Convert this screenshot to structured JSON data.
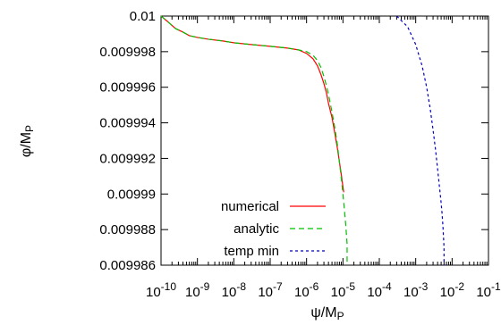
{
  "chart_data": {
    "type": "line",
    "x_scale": "log",
    "xlim": [
      1e-10,
      0.1
    ],
    "ylim": [
      0.009986,
      0.01
    ],
    "grid": false,
    "legend_position": "bottom-left",
    "xlabel": "ψ/M",
    "xlabel_sub": "P",
    "ylabel": "φ/M",
    "ylabel_sub": "P",
    "x_tick_labels": [
      {
        "x": 1e-10,
        "base": "10",
        "exp": "-10"
      },
      {
        "x": 1e-09,
        "base": "10",
        "exp": "-9"
      },
      {
        "x": 1e-08,
        "base": "10",
        "exp": "-8"
      },
      {
        "x": 1e-07,
        "base": "10",
        "exp": "-7"
      },
      {
        "x": 1e-06,
        "base": "10",
        "exp": "-6"
      },
      {
        "x": 1e-05,
        "base": "10",
        "exp": "-5"
      },
      {
        "x": 0.0001,
        "base": "10",
        "exp": "-4"
      },
      {
        "x": 0.001,
        "base": "10",
        "exp": "-3"
      },
      {
        "x": 0.01,
        "base": "10",
        "exp": "-2"
      },
      {
        "x": 0.1,
        "base": "10",
        "exp": "-1"
      }
    ],
    "y_tick_labels": [
      {
        "y": 0.01,
        "label": "0.01"
      },
      {
        "y": 0.009998,
        "label": "0.009998"
      },
      {
        "y": 0.009996,
        "label": "0.009996"
      },
      {
        "y": 0.009994,
        "label": "0.009994"
      },
      {
        "y": 0.009992,
        "label": "0.009992"
      },
      {
        "y": 0.00999,
        "label": "0.00999"
      },
      {
        "y": 0.009988,
        "label": "0.009988"
      },
      {
        "y": 0.009986,
        "label": "0.009986"
      }
    ],
    "series": [
      {
        "name": "numerical",
        "color": "#ff0000",
        "dash": "solid",
        "x": [
          1e-10,
          1.5e-10,
          2.5e-10,
          4e-10,
          6e-10,
          1e-09,
          2e-09,
          5e-09,
          1e-08,
          3e-08,
          1e-07,
          3e-07,
          6e-07,
          1e-06,
          1.5e-06,
          2e-06,
          2.5e-06,
          3e-06,
          3.5e-06,
          4e-06,
          5e-06,
          6e-06,
          7e-06,
          8e-06,
          9e-06,
          1e-05,
          1.05e-05
        ],
        "y": [
          0.01,
          0.0099997,
          0.0099993,
          0.0099991,
          0.0099989,
          0.0099988,
          0.0099987,
          0.0099986,
          0.0099985,
          0.0099984,
          0.0099983,
          0.0099982,
          0.0099981,
          0.0099979,
          0.0099976,
          0.0099972,
          0.0099967,
          0.0099962,
          0.0099957,
          0.0099951,
          0.0099943,
          0.0099934,
          0.0099926,
          0.0099918,
          0.0099911,
          0.0099904,
          0.0099901
        ]
      },
      {
        "name": "analytic",
        "color": "#00c000",
        "dash": "6,4",
        "x": [
          1e-10,
          1.5e-10,
          2.5e-10,
          4e-10,
          6e-10,
          1e-09,
          2e-09,
          5e-09,
          1e-08,
          3e-08,
          1e-07,
          3e-07,
          6e-07,
          1e-06,
          1.5e-06,
          2e-06,
          2.5e-06,
          3e-06,
          3.5e-06,
          4e-06,
          5e-06,
          6e-06,
          7e-06,
          8e-06,
          9e-06,
          1e-05,
          1.1e-05,
          1.2e-05,
          1.3e-05,
          1.3e-05
        ],
        "y": [
          0.01,
          0.0099997,
          0.0099993,
          0.0099991,
          0.0099989,
          0.0099988,
          0.0099987,
          0.0099986,
          0.0099985,
          0.0099984,
          0.0099983,
          0.0099982,
          0.0099981,
          0.009998,
          0.0099978,
          0.0099975,
          0.0099971,
          0.0099966,
          0.0099961,
          0.0099956,
          0.0099946,
          0.0099937,
          0.0099928,
          0.0099918,
          0.0099909,
          0.00999,
          0.0099891,
          0.0099882,
          0.0099872,
          0.009986
        ]
      },
      {
        "name": "temp min",
        "color": "#0000c0",
        "dash": "3,3",
        "x": [
          0.0003,
          0.0006,
          0.001,
          0.0015,
          0.002,
          0.0025,
          0.003,
          0.0035,
          0.004,
          0.0045,
          0.005,
          0.0053,
          0.0056,
          0.0058,
          0.006,
          0.006
        ],
        "y": [
          0.01,
          0.0099994,
          0.0099984,
          0.0099972,
          0.009996,
          0.0099948,
          0.0099936,
          0.0099925,
          0.0099914,
          0.0099904,
          0.0099895,
          0.0099889,
          0.0099882,
          0.0099876,
          0.009987,
          0.009986
        ]
      }
    ]
  }
}
